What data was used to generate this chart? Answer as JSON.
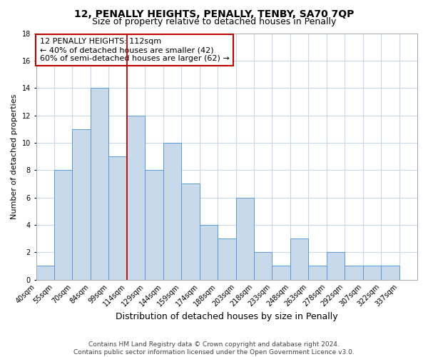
{
  "title": "12, PENALLY HEIGHTS, PENALLY, TENBY, SA70 7QP",
  "subtitle": "Size of property relative to detached houses in Penally",
  "xlabel": "Distribution of detached houses by size in Penally",
  "ylabel": "Number of detached properties",
  "footer_line1": "Contains HM Land Registry data © Crown copyright and database right 2024.",
  "footer_line2": "Contains public sector information licensed under the Open Government Licence v3.0.",
  "bin_labels": [
    "40sqm",
    "55sqm",
    "70sqm",
    "84sqm",
    "99sqm",
    "114sqm",
    "129sqm",
    "144sqm",
    "159sqm",
    "174sqm",
    "188sqm",
    "203sqm",
    "218sqm",
    "233sqm",
    "248sqm",
    "263sqm",
    "278sqm",
    "292sqm",
    "307sqm",
    "322sqm",
    "337sqm"
  ],
  "counts": [
    1,
    8,
    11,
    14,
    9,
    12,
    8,
    10,
    7,
    4,
    3,
    6,
    2,
    1,
    3,
    1,
    2,
    1,
    1,
    1,
    0
  ],
  "bar_color": "#c9d9ec",
  "bar_edgecolor": "#5b9bd5",
  "vline_bin_index": 5,
  "vline_color": "#c00000",
  "annotation_line1": "12 PENALLY HEIGHTS: 112sqm",
  "annotation_line2": "← 40% of detached houses are smaller (42)",
  "annotation_line3": "60% of semi-detached houses are larger (62) →",
  "annotation_box_color": "#c00000",
  "ylim": [
    0,
    18
  ],
  "yticks": [
    0,
    2,
    4,
    6,
    8,
    10,
    12,
    14,
    16,
    18
  ],
  "background_color": "#ffffff",
  "grid_color": "#c8d8e8",
  "title_fontsize": 10,
  "subtitle_fontsize": 9,
  "xlabel_fontsize": 9,
  "ylabel_fontsize": 8,
  "tick_fontsize": 7,
  "annotation_fontsize": 8,
  "footer_fontsize": 6.5
}
